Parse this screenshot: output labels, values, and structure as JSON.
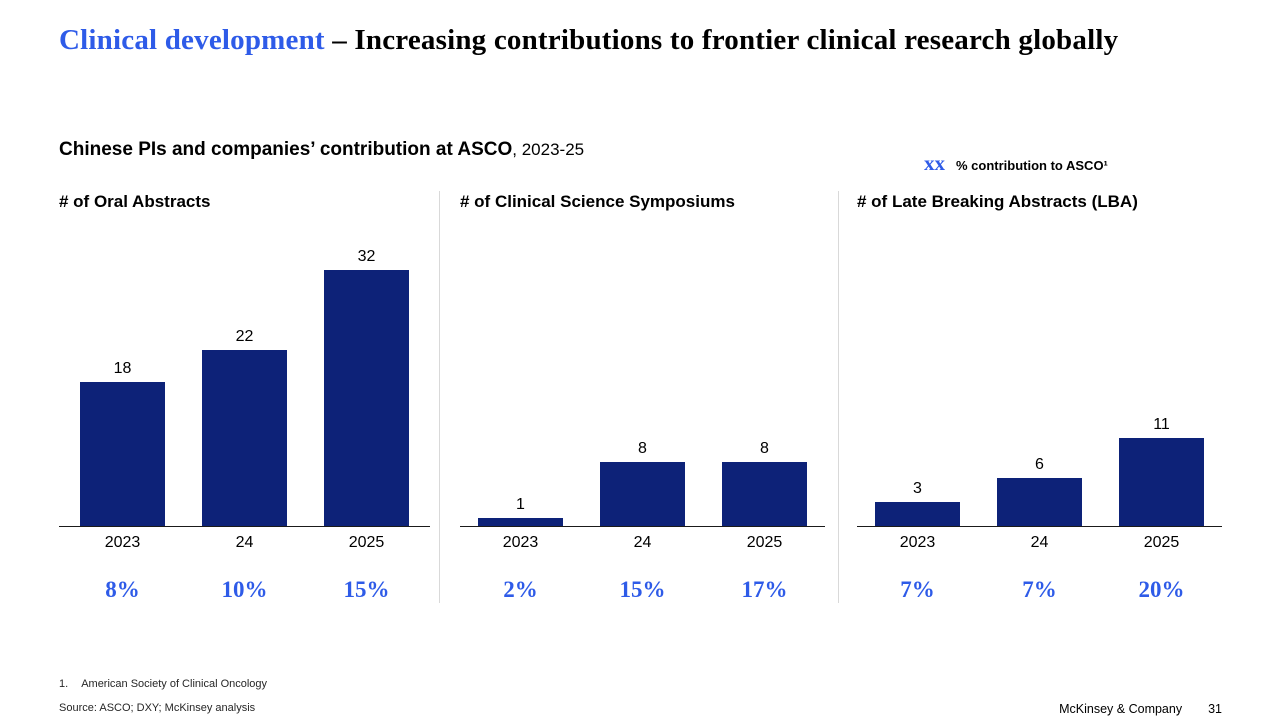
{
  "colors": {
    "accent_blue": "#2E5BE8",
    "bar_navy": "#0D2278",
    "divider": "#D9D9D9",
    "axis": "#1A1A1A"
  },
  "header": {
    "title_accent": "Clinical development",
    "title_rest": "– Increasing contributions to frontier clinical research globally"
  },
  "legend": {
    "marker": "xx",
    "label": "% contribution to ASCO¹"
  },
  "subtitle": {
    "bold": "Chinese PIs and companies’ contribution at ASCO",
    "regular": ", 2023-25"
  },
  "chart_data": [
    {
      "type": "bar",
      "title": "# of Oral Abstracts",
      "categories": [
        "2023",
        "24",
        "2025"
      ],
      "values": [
        18,
        22,
        32
      ],
      "percent_labels": [
        "8%",
        "10%",
        "15%"
      ],
      "ylim": [
        0,
        32
      ],
      "grid": false
    },
    {
      "type": "bar",
      "title": "# of Clinical Science Symposiums",
      "categories": [
        "2023",
        "24",
        "2025"
      ],
      "values": [
        1,
        8,
        8
      ],
      "percent_labels": [
        "2%",
        "15%",
        "17%"
      ],
      "ylim": [
        0,
        32
      ],
      "grid": false
    },
    {
      "type": "bar",
      "title": "# of Late Breaking Abstracts (LBA)",
      "categories": [
        "2023",
        "24",
        "2025"
      ],
      "values": [
        3,
        6,
        11
      ],
      "percent_labels": [
        "7%",
        "7%",
        "20%"
      ],
      "ylim": [
        0,
        32
      ],
      "grid": false
    }
  ],
  "footnote": {
    "number": "1.",
    "text": "American Society of Clinical Oncology"
  },
  "source": "Source: ASCO; DXY; McKinsey analysis",
  "footer": {
    "brand": "McKinsey & Company",
    "page": "31"
  }
}
